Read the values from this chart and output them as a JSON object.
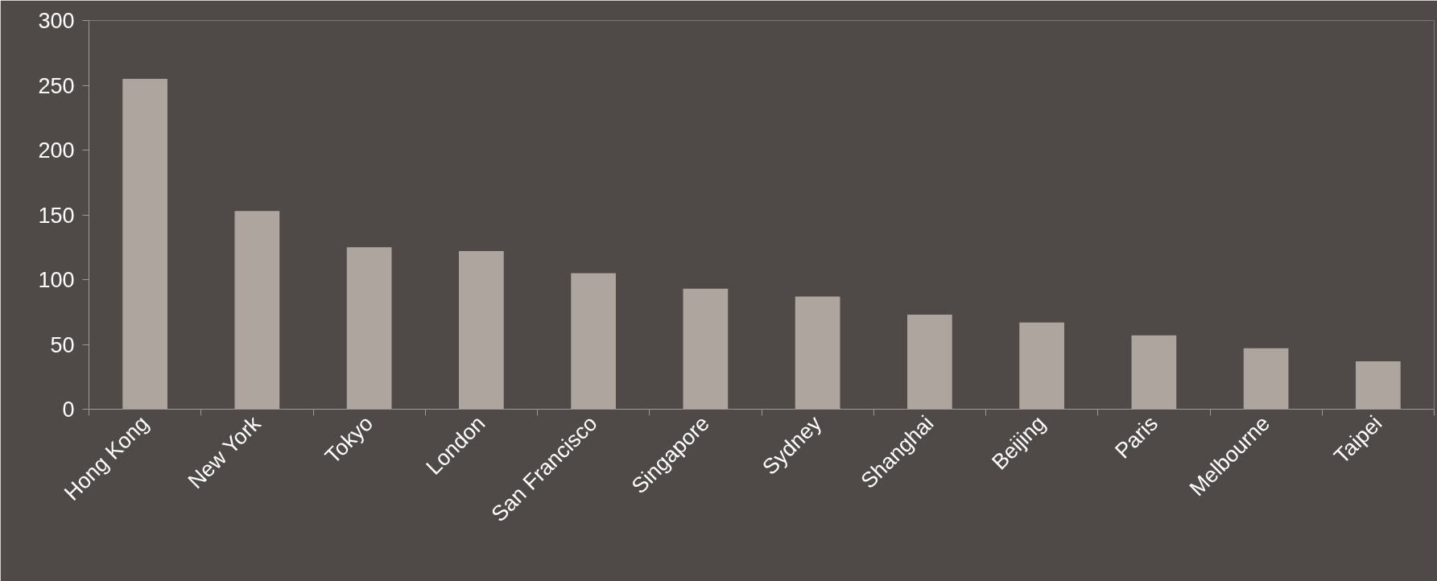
{
  "chart_data": {
    "type": "bar",
    "categories": [
      "Hong Kong",
      "New York",
      "Tokyo",
      "London",
      "San Francisco",
      "Singapore",
      "Sydney",
      "Shanghai",
      "Beijing",
      "Paris",
      "Melbourne",
      "Taipei"
    ],
    "values": [
      255,
      153,
      125,
      122,
      105,
      93,
      87,
      73,
      67,
      57,
      47,
      37
    ],
    "color": "#aea69e",
    "ylim": [
      0,
      300
    ],
    "yticks": [
      0,
      50,
      100,
      150,
      200,
      250,
      300
    ]
  }
}
